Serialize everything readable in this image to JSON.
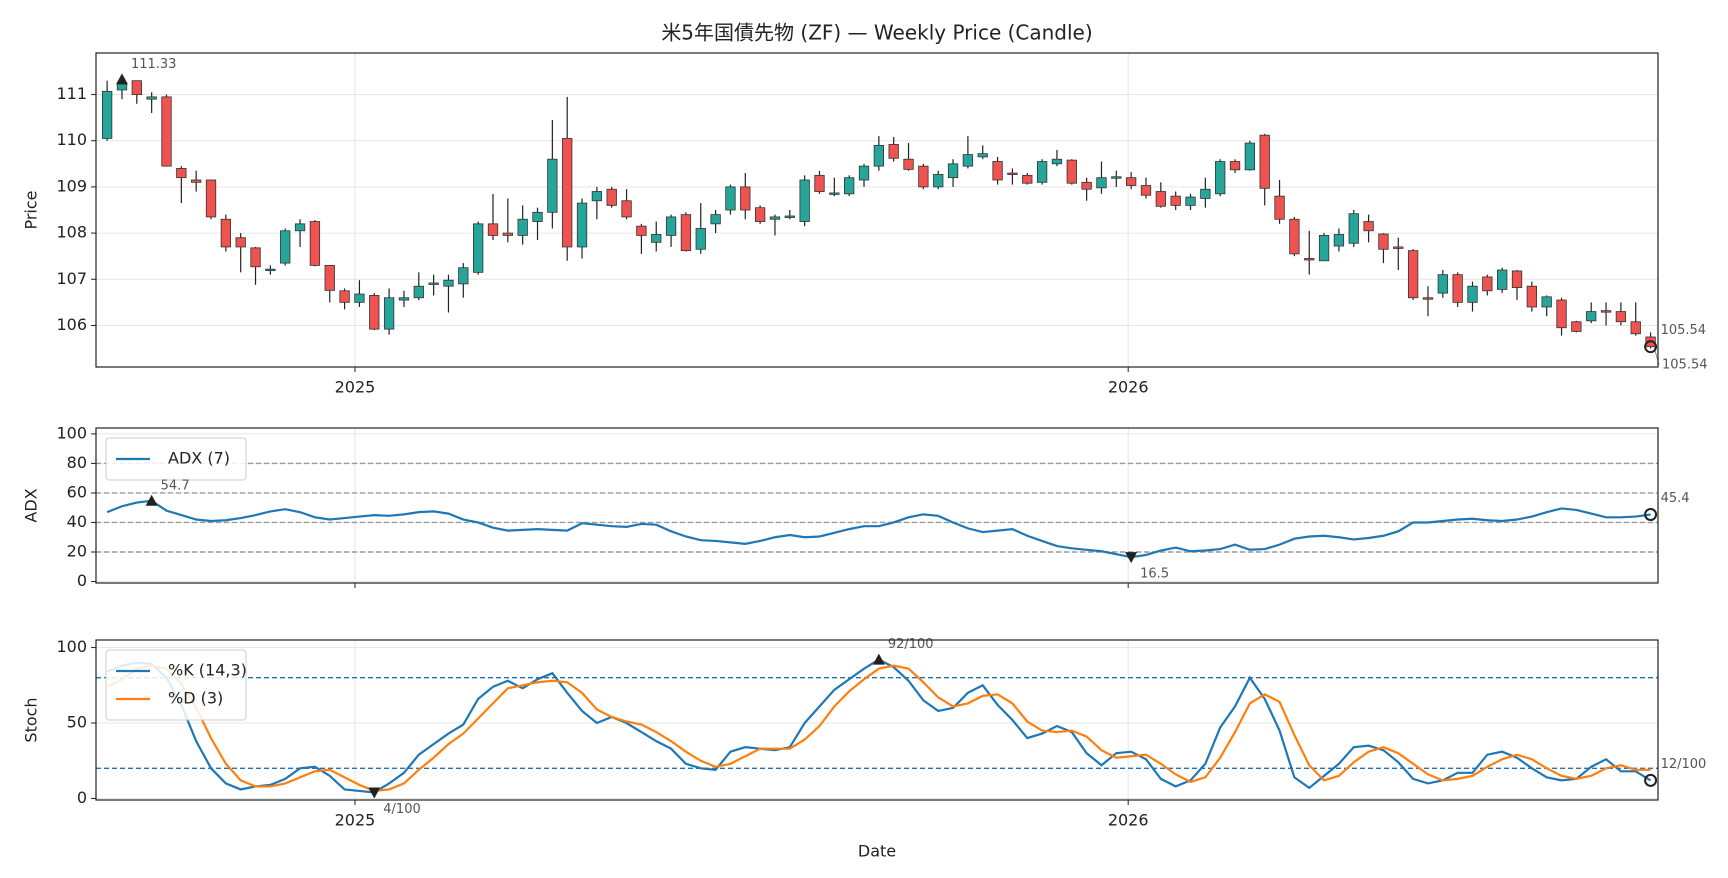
{
  "chart_data": [
    {
      "type": "candlestick",
      "title": "米5年国債先物 (ZF) — Weekly Price (Candle)",
      "ylabel": "Price",
      "open": [
        110.05,
        111.1,
        111.3,
        110.9,
        110.95,
        109.4,
        109.15,
        109.15,
        108.3,
        107.9,
        107.68,
        107.2,
        107.35,
        108.05,
        108.25,
        107.3,
        106.75,
        106.5,
        106.65,
        105.92,
        106.55,
        106.6,
        106.9,
        106.85,
        106.9,
        107.15,
        108.2,
        108.0,
        107.95,
        108.25,
        108.45,
        110.05,
        107.7,
        108.7,
        108.95,
        108.7,
        108.15,
        107.8,
        107.95,
        108.4,
        107.65,
        108.2,
        108.5,
        109.0,
        108.55,
        108.3,
        108.35,
        108.25,
        109.25,
        108.85,
        108.85,
        109.15,
        109.45,
        109.92,
        109.6,
        109.45,
        109.0,
        109.2,
        109.45,
        109.65,
        109.55,
        109.3,
        109.25,
        109.1,
        109.5,
        109.58,
        109.1,
        108.98,
        109.2,
        109.2,
        109.03,
        108.9,
        108.8,
        108.6,
        108.75,
        108.85,
        109.55,
        109.37,
        110.12,
        108.8,
        108.3,
        107.45,
        107.4,
        107.72,
        107.78,
        108.25,
        107.98,
        107.7,
        107.62,
        106.6,
        106.7,
        107.1,
        106.5,
        107.05,
        106.78,
        107.18,
        106.85,
        106.4,
        106.55,
        106.08,
        106.1,
        106.32,
        106.3,
        106.08,
        105.75
      ],
      "high": [
        111.3,
        111.33,
        111.3,
        111.05,
        111.0,
        109.45,
        109.35,
        109.15,
        108.4,
        108.0,
        107.7,
        107.3,
        108.1,
        108.3,
        108.28,
        107.3,
        106.8,
        106.98,
        106.7,
        106.8,
        106.75,
        107.15,
        107.1,
        107.1,
        107.35,
        108.25,
        108.85,
        108.75,
        108.6,
        108.55,
        110.45,
        110.95,
        108.75,
        109.0,
        109.0,
        108.95,
        108.2,
        108.25,
        108.4,
        108.45,
        108.65,
        108.5,
        109.05,
        109.3,
        108.6,
        108.4,
        108.5,
        109.25,
        109.35,
        109.2,
        109.25,
        109.5,
        110.1,
        110.08,
        109.95,
        109.5,
        109.35,
        109.6,
        110.1,
        109.9,
        109.65,
        109.4,
        109.3,
        109.6,
        109.8,
        109.6,
        109.2,
        109.55,
        109.35,
        109.32,
        109.2,
        109.1,
        108.9,
        108.85,
        109.2,
        109.6,
        109.6,
        110.0,
        110.15,
        109.15,
        108.35,
        108.05,
        108.0,
        108.1,
        108.5,
        108.4,
        108.0,
        107.9,
        107.65,
        106.85,
        107.2,
        107.15,
        106.95,
        107.1,
        107.25,
        107.2,
        106.95,
        106.65,
        106.6,
        106.1,
        106.5,
        106.5,
        106.5,
        106.5,
        105.85
      ],
      "low": [
        110.0,
        110.9,
        110.8,
        110.6,
        109.45,
        108.65,
        108.9,
        108.3,
        107.6,
        107.15,
        106.88,
        107.1,
        107.3,
        107.7,
        107.28,
        106.5,
        106.35,
        106.4,
        105.9,
        105.8,
        106.4,
        106.55,
        106.65,
        106.28,
        106.6,
        107.1,
        107.85,
        107.8,
        107.75,
        107.85,
        108.1,
        107.4,
        107.45,
        108.3,
        108.55,
        108.3,
        107.55,
        107.6,
        107.7,
        107.6,
        107.55,
        108.0,
        108.4,
        108.3,
        108.2,
        107.95,
        108.3,
        108.15,
        108.85,
        108.8,
        108.8,
        109.0,
        109.35,
        109.55,
        109.35,
        108.95,
        108.95,
        109.0,
        109.4,
        109.6,
        109.05,
        109.05,
        109.05,
        109.05,
        109.45,
        109.05,
        108.7,
        108.85,
        109.0,
        108.95,
        108.75,
        108.55,
        108.5,
        108.5,
        108.55,
        108.8,
        109.3,
        109.35,
        108.6,
        108.2,
        107.5,
        107.1,
        107.4,
        107.6,
        107.7,
        107.8,
        107.35,
        107.2,
        106.55,
        106.2,
        106.6,
        106.4,
        106.3,
        106.65,
        106.7,
        106.55,
        106.3,
        106.2,
        105.78,
        105.85,
        106.05,
        106.0,
        106.0,
        105.78,
        105.5
      ],
      "close": [
        111.07,
        111.25,
        111.0,
        110.95,
        109.45,
        109.2,
        109.1,
        108.35,
        107.7,
        107.7,
        107.27,
        107.22,
        108.05,
        108.2,
        107.3,
        106.76,
        106.5,
        106.68,
        105.92,
        106.6,
        106.6,
        106.85,
        106.92,
        106.98,
        107.25,
        108.2,
        107.95,
        107.95,
        108.3,
        108.45,
        109.6,
        107.7,
        108.65,
        108.9,
        108.6,
        108.35,
        107.95,
        107.97,
        108.35,
        107.62,
        108.1,
        108.4,
        109.0,
        108.5,
        108.25,
        108.35,
        108.37,
        109.15,
        108.9,
        108.87,
        109.2,
        109.45,
        109.9,
        109.62,
        109.38,
        109.0,
        109.27,
        109.5,
        109.7,
        109.72,
        109.15,
        109.28,
        109.08,
        109.55,
        109.6,
        109.08,
        108.95,
        109.2,
        109.22,
        109.03,
        108.82,
        108.58,
        108.6,
        108.78,
        108.95,
        109.55,
        109.37,
        109.95,
        108.97,
        108.3,
        107.55,
        107.42,
        107.95,
        107.97,
        108.42,
        108.05,
        107.65,
        107.68,
        106.6,
        106.57,
        107.1,
        106.5,
        106.85,
        106.75,
        107.2,
        106.82,
        106.4,
        106.62,
        105.95,
        105.87,
        106.3,
        106.3,
        106.08,
        105.82,
        105.54
      ],
      "up_color": "#26a69a",
      "down_color": "#ef5350",
      "xlim": [
        -0.75,
        104.5
      ],
      "xticks": [
        {
          "value": 16.7,
          "label": "2025"
        },
        {
          "value": 68.8,
          "label": "2026"
        }
      ],
      "ylim": [
        105.1,
        111.9
      ],
      "yticks": [
        106,
        107,
        108,
        109,
        110,
        111
      ],
      "grid": true,
      "annotations": [
        {
          "x": 1,
          "value": 111.33,
          "marker": "triangle-up"
        },
        {
          "x": 104,
          "value": 105.54,
          "marker": "circle"
        }
      ],
      "last_price": 105.54
    },
    {
      "type": "line",
      "ylabel": "ADX",
      "series": [
        {
          "name": "ADX (7)",
          "color": "#1f77b4",
          "values": [
            47,
            51,
            53.5,
            54.7,
            48,
            45,
            42,
            41,
            41.5,
            43,
            45,
            47.5,
            49,
            47,
            43.5,
            42,
            43,
            44,
            45,
            44.5,
            45.5,
            47,
            47.5,
            46,
            42,
            40,
            36.5,
            34.5,
            35,
            35.5,
            35,
            34.5,
            39.5,
            38.5,
            37.5,
            37,
            39,
            38.5,
            34,
            30.5,
            28,
            27.5,
            26.5,
            25.5,
            27.5,
            30,
            31.5,
            30,
            30.5,
            33,
            35.5,
            37.5,
            37.5,
            40,
            43.5,
            45.5,
            44.5,
            40,
            36,
            33.5,
            34.5,
            35.5,
            31,
            27.5,
            24,
            22.5,
            21.5,
            20.5,
            18.5,
            16.5,
            18,
            21,
            23,
            20.5,
            21,
            22,
            25,
            21.5,
            22,
            25,
            29,
            30.5,
            31,
            30,
            28.5,
            29.5,
            31,
            34,
            40,
            40,
            41,
            42,
            42.5,
            41.5,
            41,
            42,
            44,
            47,
            49.5,
            48.5,
            46,
            43.5,
            43.5,
            44,
            45.4
          ]
        }
      ],
      "xlim": [
        -0.75,
        104.5
      ],
      "xticks": [
        {
          "value": 16.7,
          "label": "2025"
        },
        {
          "value": 68.8,
          "label": "2026"
        }
      ],
      "show_xtick_labels": false,
      "ylim": [
        -1,
        104
      ],
      "yticks": [
        0,
        20,
        40,
        60,
        80,
        100
      ],
      "grid": true,
      "hlines": [
        20,
        40,
        60,
        80
      ],
      "hline_color": "#999999",
      "legend": "upper left",
      "annotations": [
        {
          "x": 3,
          "value": 54.7,
          "marker": "triangle-up"
        },
        {
          "x": 69,
          "value": 16.5,
          "marker": "triangle-down"
        },
        {
          "x": 104,
          "value": 45.4,
          "marker": "circle"
        }
      ]
    },
    {
      "type": "line",
      "ylabel": "Stoch",
      "xlabel": "Date",
      "series": [
        {
          "name": "%K (14,3)",
          "color": "#1f77b4",
          "values": [
            84,
            88,
            90,
            89,
            80,
            62,
            38,
            20,
            10,
            6,
            8,
            9,
            13,
            20,
            21,
            15,
            6,
            5,
            4,
            10,
            17,
            29,
            36,
            43,
            49,
            66,
            74,
            78,
            73,
            79,
            83,
            70,
            58,
            50,
            54,
            50,
            44,
            38,
            33,
            23,
            20,
            19,
            31,
            34,
            33,
            32,
            34,
            50,
            61,
            72,
            79,
            86,
            92,
            87,
            78,
            65,
            58,
            60,
            70,
            75,
            62,
            52,
            40,
            43,
            48,
            44,
            30,
            22,
            30,
            31,
            26,
            13,
            8,
            12,
            23,
            47,
            61,
            80,
            66,
            45,
            14,
            7,
            15,
            23,
            34,
            35,
            32,
            24,
            13,
            10,
            12,
            17,
            17,
            29,
            31,
            27,
            20,
            14,
            12,
            13,
            21,
            26,
            18,
            18,
            12
          ]
        },
        {
          "name": "%D (3)",
          "color": "#ff7f0e",
          "values": [
            74,
            79,
            86,
            88,
            86,
            76,
            60,
            40,
            23,
            12,
            8,
            8,
            10,
            14,
            18,
            19,
            14,
            9,
            5,
            6,
            10,
            19,
            27,
            36,
            43,
            53,
            63,
            73,
            75,
            77,
            78,
            77,
            70,
            59,
            54,
            51,
            49,
            44,
            38,
            31,
            25,
            21,
            23,
            28,
            33,
            33,
            33,
            39,
            48,
            61,
            71,
            79,
            86,
            88,
            86,
            77,
            67,
            61,
            63,
            68,
            69,
            63,
            51,
            45,
            44,
            45,
            41,
            32,
            27,
            28,
            29,
            23,
            16,
            11,
            14,
            27,
            44,
            63,
            69,
            64,
            42,
            22,
            12,
            15,
            24,
            31,
            34,
            30,
            23,
            16,
            12,
            13,
            15,
            21,
            26,
            29,
            26,
            20,
            15,
            13,
            15,
            20,
            22,
            19,
            19
          ]
        }
      ],
      "xlim": [
        -0.75,
        104.5
      ],
      "xticks": [
        {
          "value": 16.7,
          "label": "2025"
        },
        {
          "value": 68.8,
          "label": "2026"
        }
      ],
      "ylim": [
        -1,
        105
      ],
      "yticks": [
        0,
        50,
        100
      ],
      "grid": true,
      "hlines": [
        20,
        80
      ],
      "hline_color": "#1f77b4",
      "legend": "upper left",
      "annotations": [
        {
          "x": 52,
          "value": 92,
          "label": "92/100",
          "marker": "triangle-up"
        },
        {
          "x": 18,
          "value": 4,
          "label": "4/100",
          "marker": "triangle-down"
        },
        {
          "x": 104,
          "value": 12,
          "label": "12/100",
          "marker": "circle"
        }
      ]
    }
  ]
}
